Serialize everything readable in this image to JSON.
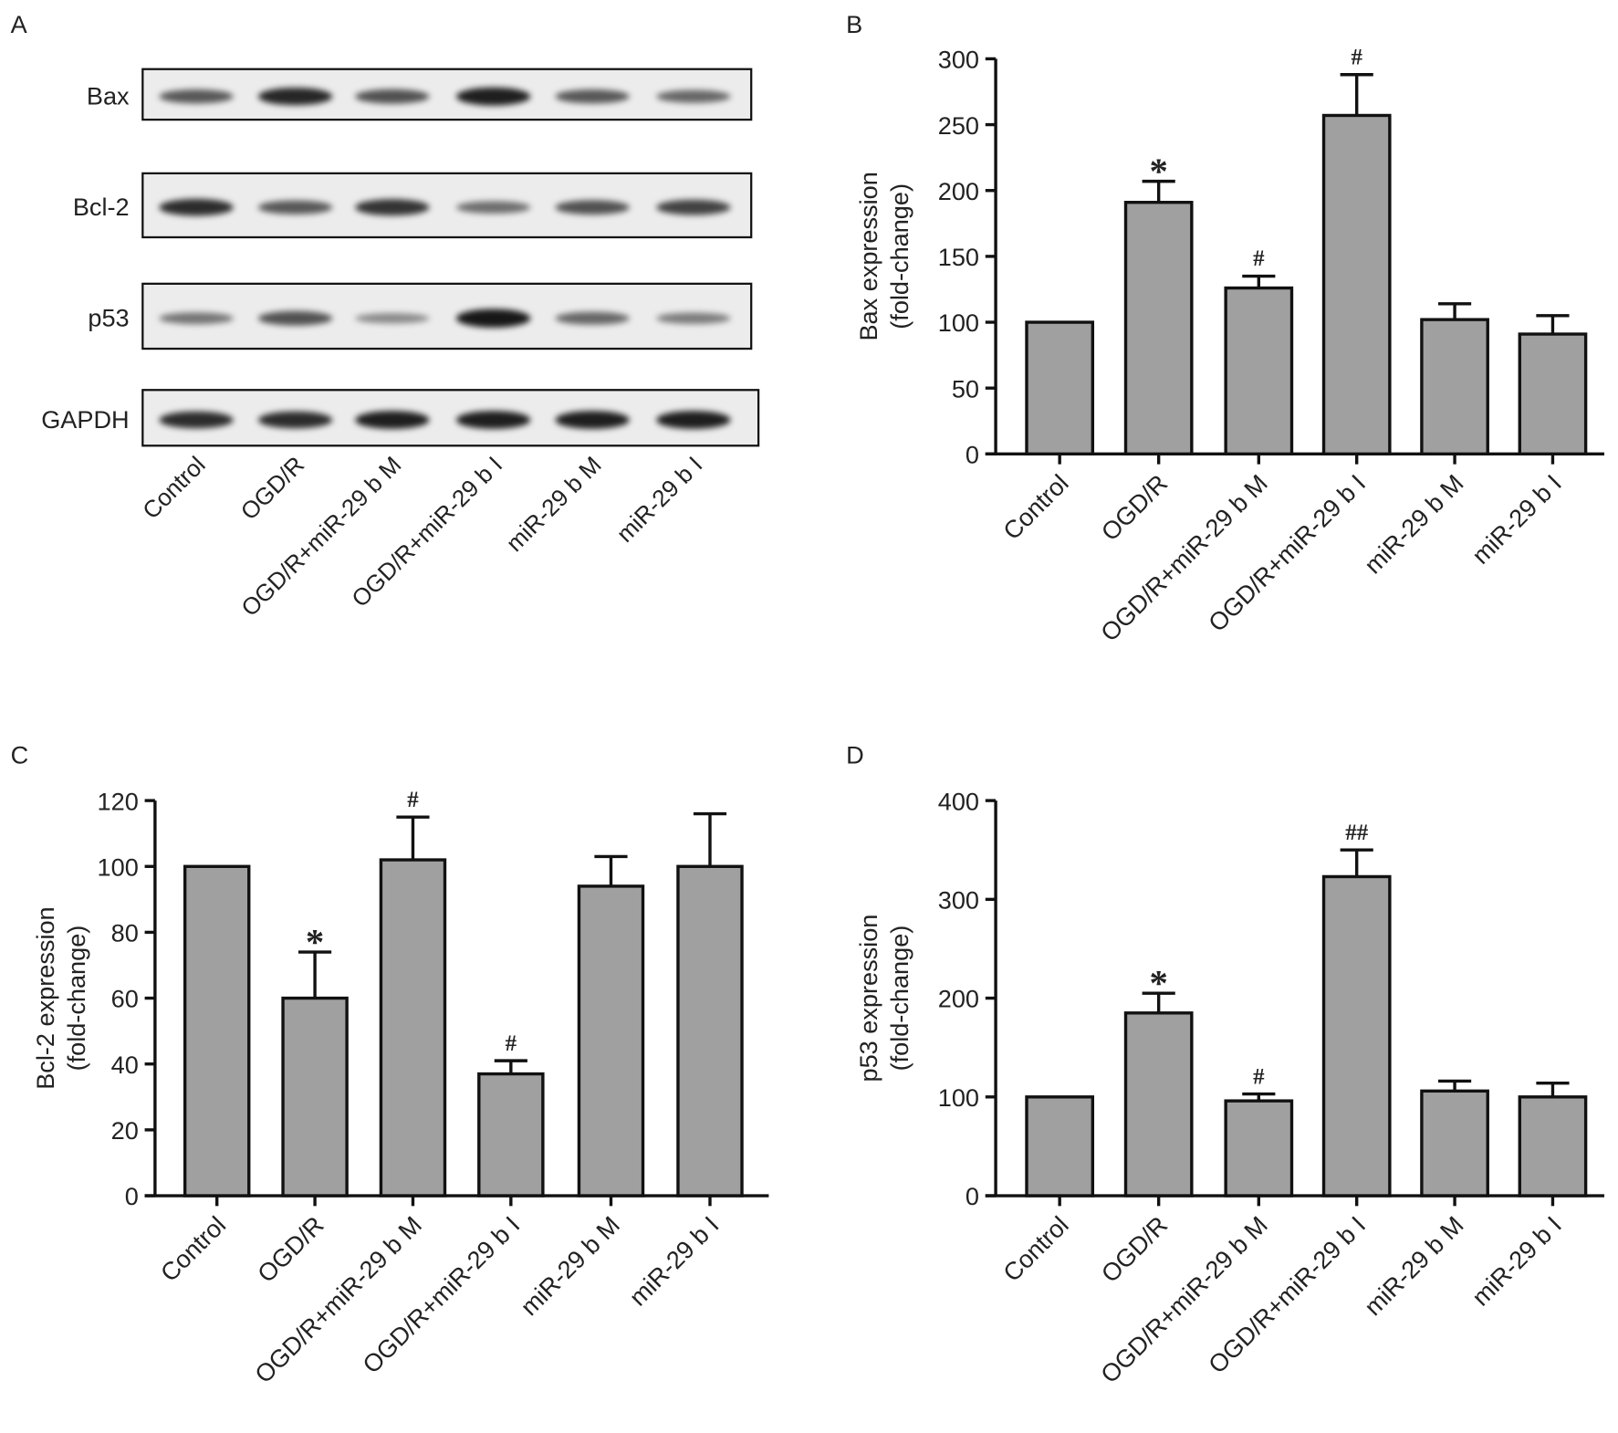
{
  "panel_labels": [
    "A",
    "B",
    "C",
    "D"
  ],
  "blot": {
    "rows": [
      "Bax",
      "Bcl-2",
      "p53",
      "GAPDH"
    ],
    "lanes": [
      "Control",
      "OGD/R",
      "OGD/R+miR-29 b M",
      "OGD/R+miR-29 b I",
      "miR-29 b M",
      "miR-29 b I"
    ]
  },
  "chart_data": [
    {
      "panel": "B",
      "type": "bar",
      "categories": [
        "Control",
        "OGD/R",
        "OGD/R+miR-29 b M",
        "OGD/R+miR-29 b I",
        "miR-29 b M",
        "miR-29 b I"
      ],
      "values": [
        100,
        191,
        126,
        257,
        102,
        91
      ],
      "errors_upper": [
        100,
        207,
        135,
        288,
        114,
        105
      ],
      "annotations": [
        "",
        "*",
        "#",
        "#",
        "",
        ""
      ],
      "ylabel": [
        "Bax expression",
        "(fold-change)"
      ],
      "ylim": [
        0,
        300
      ],
      "yticks": [
        0,
        50,
        100,
        150,
        200,
        250,
        300
      ],
      "bar_color": "#a0a0a0"
    },
    {
      "panel": "C",
      "type": "bar",
      "categories": [
        "Control",
        "OGD/R",
        "OGD/R+miR-29 b M",
        "OGD/R+miR-29 b I",
        "miR-29 b M",
        "miR-29 b I"
      ],
      "values": [
        100,
        60,
        102,
        37,
        94,
        100
      ],
      "errors_upper": [
        100,
        74,
        115,
        41,
        103,
        116
      ],
      "annotations": [
        "",
        "*",
        "#",
        "#",
        "",
        ""
      ],
      "ylabel": [
        "Bcl-2 expression",
        "(fold-change)"
      ],
      "ylim": [
        0,
        120
      ],
      "yticks": [
        0,
        20,
        40,
        60,
        80,
        100,
        120
      ],
      "bar_color": "#a0a0a0"
    },
    {
      "panel": "D",
      "type": "bar",
      "categories": [
        "Control",
        "OGD/R",
        "OGD/R+miR-29 b M",
        "OGD/R+miR-29 b I",
        "miR-29 b M",
        "miR-29 b I"
      ],
      "values": [
        100,
        185,
        96,
        323,
        106,
        100
      ],
      "errors_upper": [
        100,
        205,
        103,
        350,
        116,
        114
      ],
      "annotations": [
        "",
        "*",
        "#",
        "##",
        "",
        ""
      ],
      "ylabel": [
        "p53 expression",
        "(fold-change)"
      ],
      "ylim": [
        0,
        400
      ],
      "yticks": [
        0,
        100,
        200,
        300,
        400
      ],
      "bar_color": "#a0a0a0"
    }
  ]
}
